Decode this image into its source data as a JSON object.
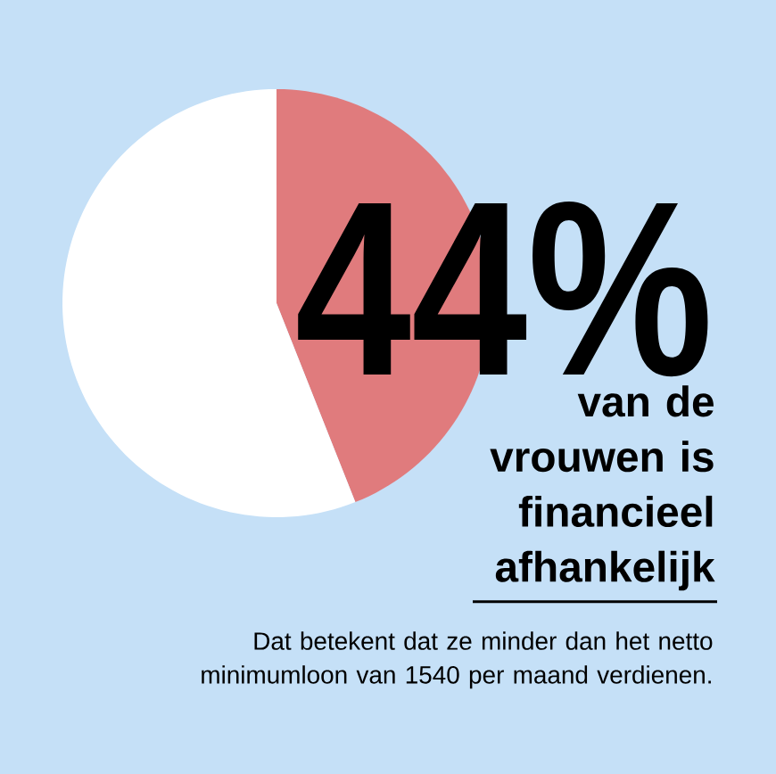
{
  "chart_data": {
    "type": "pie",
    "categories": [
      null,
      null
    ],
    "values": [
      44,
      56
    ],
    "colors": [
      "#e07b7d",
      "#ffffff"
    ],
    "value_labels": [
      "44%",
      null
    ],
    "title": "van de vrouwen is financieel afhankelijk",
    "annotations": [
      "Dat betekent dat ze minder dan het netto minimumloon van 1540 per maand verdienen."
    ]
  }
}
